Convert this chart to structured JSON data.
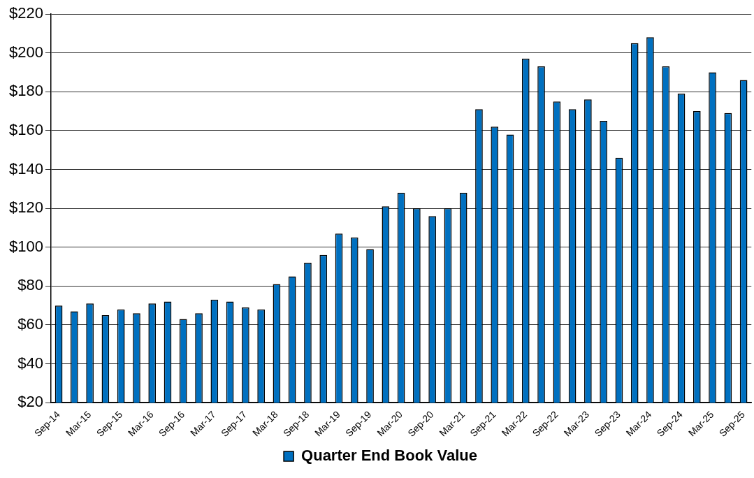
{
  "chart_data": {
    "type": "bar",
    "categories": [
      "Sep-14",
      null,
      "Mar-15",
      null,
      "Sep-15",
      null,
      "Mar-16",
      null,
      "Sep-16",
      null,
      "Mar-17",
      null,
      "Sep-17",
      null,
      "Mar-18",
      null,
      "Sep-18",
      null,
      "Mar-19",
      null,
      "Sep-19",
      null,
      "Mar-20",
      null,
      "Sep-20",
      null,
      "Mar-21",
      null,
      "Sep-21",
      null,
      "Mar-22",
      null,
      "Sep-22",
      null,
      "Mar-23",
      null,
      "Sep-23",
      null,
      "Mar-24",
      null,
      "Sep-24",
      null,
      "Mar-25",
      null,
      "Sep-25"
    ],
    "series": [
      {
        "name": "Quarter End Book Value",
        "color": "#0070c0",
        "values": [
          70,
          67,
          71,
          65,
          68,
          66,
          71,
          72,
          63,
          66,
          73,
          72,
          69,
          68,
          81,
          85,
          92,
          96,
          107,
          105,
          99,
          121,
          128,
          120,
          116,
          120,
          128,
          171,
          162,
          158,
          197,
          193,
          175,
          171,
          176,
          165,
          146,
          205,
          208,
          193,
          179,
          170,
          190,
          169,
          186
        ]
      }
    ],
    "ylim": [
      20,
      220
    ],
    "yticks": [
      {
        "value": 20,
        "label": "$20"
      },
      {
        "value": 40,
        "label": "$40"
      },
      {
        "value": 60,
        "label": "$60"
      },
      {
        "value": 80,
        "label": "$80"
      },
      {
        "value": 100,
        "label": "$100"
      },
      {
        "value": 120,
        "label": "$120"
      },
      {
        "value": 140,
        "label": "$140"
      },
      {
        "value": 160,
        "label": "$160"
      },
      {
        "value": 180,
        "label": "$180"
      },
      {
        "value": 200,
        "label": "$200"
      },
      {
        "value": 220,
        "label": "$220"
      }
    ],
    "grid": "y",
    "legend": "bottom"
  }
}
